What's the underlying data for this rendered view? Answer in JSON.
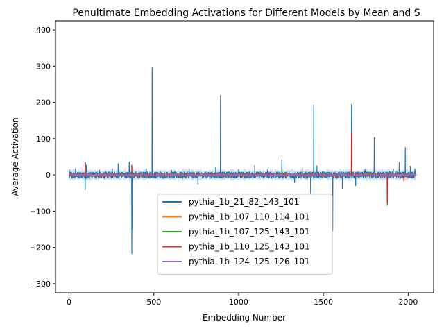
{
  "chart_data": {
    "type": "line",
    "title": "Penultimate Embedding Activations for Different Models by Mean and S",
    "xlabel": "Embedding Number",
    "ylabel": "Average Activation",
    "xlim": [
      -80,
      2150
    ],
    "ylim": [
      -325,
      425
    ],
    "x_ticks": [
      0,
      500,
      1000,
      1500,
      2000
    ],
    "y_ticks": [
      -300,
      -200,
      -100,
      0,
      100,
      200,
      300,
      400
    ],
    "embedding_count": 2048,
    "grid": false,
    "legend_position": "lower center",
    "std_band_color": "#1f77b4",
    "series": [
      {
        "name": "pythia_1b_21_82_143_101",
        "color": "#1f77b4",
        "noise_amplitude": 9,
        "spikes": [
          [
            1,
            15
          ],
          [
            38,
            18
          ],
          [
            95,
            -42
          ],
          [
            102,
            28
          ],
          [
            180,
            14
          ],
          [
            255,
            18
          ],
          [
            290,
            32
          ],
          [
            355,
            36
          ],
          [
            370,
            -218
          ],
          [
            372,
            -150
          ],
          [
            455,
            18
          ],
          [
            490,
            298
          ],
          [
            605,
            14
          ],
          [
            708,
            18
          ],
          [
            760,
            -25
          ],
          [
            865,
            22
          ],
          [
            893,
            220
          ],
          [
            1000,
            16
          ],
          [
            1095,
            27
          ],
          [
            1170,
            15
          ],
          [
            1255,
            43
          ],
          [
            1330,
            -22
          ],
          [
            1375,
            22
          ],
          [
            1425,
            -55
          ],
          [
            1443,
            193
          ],
          [
            1462,
            26
          ],
          [
            1555,
            -156
          ],
          [
            1612,
            -38
          ],
          [
            1666,
            195
          ],
          [
            1690,
            -30
          ],
          [
            1746,
            16
          ],
          [
            1800,
            103
          ],
          [
            1912,
            18
          ],
          [
            1948,
            35
          ],
          [
            1983,
            76
          ],
          [
            2013,
            25
          ],
          [
            2040,
            18
          ]
        ]
      },
      {
        "name": "pythia_1b_107_110_114_101",
        "color": "#ff7f0e",
        "noise_amplitude": 1.8,
        "spikes": [
          [
            96,
            30
          ],
          [
            1666,
            45
          ],
          [
            1877,
            -45
          ]
        ]
      },
      {
        "name": "pythia_1b_107_125_143_101",
        "color": "#2ca02c",
        "noise_amplitude": 1.8,
        "spikes": [
          [
            1255,
            15
          ],
          [
            1877,
            -85
          ]
        ]
      },
      {
        "name": "pythia_1b_110_125_143_101",
        "color": "#d62728",
        "noise_amplitude": 2,
        "spikes": [
          [
            96,
            35
          ],
          [
            370,
            28
          ],
          [
            1666,
            115
          ],
          [
            1877,
            -78
          ],
          [
            1975,
            -18
          ]
        ]
      },
      {
        "name": "pythia_1b_124_125_126_101",
        "color": "#9467bd",
        "noise_amplitude": 1.5,
        "spikes": []
      }
    ]
  }
}
